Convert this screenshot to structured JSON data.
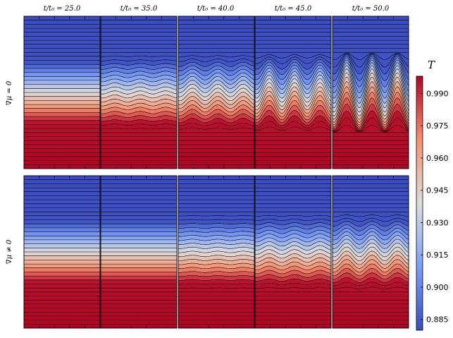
{
  "chart_data": {
    "type": "heatmap",
    "figure": "Temperature field contour maps at successive times, comparing a case without and with a chemical potential gradient",
    "colormap": "coolwarm",
    "column_titles": [
      "t/t₀ = 25.0",
      "t/t₀ = 35.0",
      "t/t₀ = 40.0",
      "t/t₀ = 45.0",
      "t/t₀ = 50.0"
    ],
    "times": [
      25.0,
      35.0,
      40.0,
      45.0,
      50.0
    ],
    "rows": [
      {
        "label": "∇μ = 0",
        "perturbation_amplitude": [
          0.0,
          0.08,
          0.22,
          0.5,
          1.0
        ]
      },
      {
        "label": "∇μ ≠ 0",
        "perturbation_amplitude": [
          0.0,
          0.0,
          0.04,
          0.12,
          0.25
        ]
      }
    ],
    "colorbar": {
      "title": "T",
      "range": [
        0.88,
        0.998
      ],
      "ticks": [
        0.885,
        0.9,
        0.915,
        0.93,
        0.945,
        0.96,
        0.975,
        0.99
      ],
      "tick_labels": [
        "0.885",
        "0.900",
        "0.915",
        "0.930",
        "0.945",
        "0.960",
        "0.975",
        "0.990"
      ]
    },
    "contour_levels": 38
  }
}
